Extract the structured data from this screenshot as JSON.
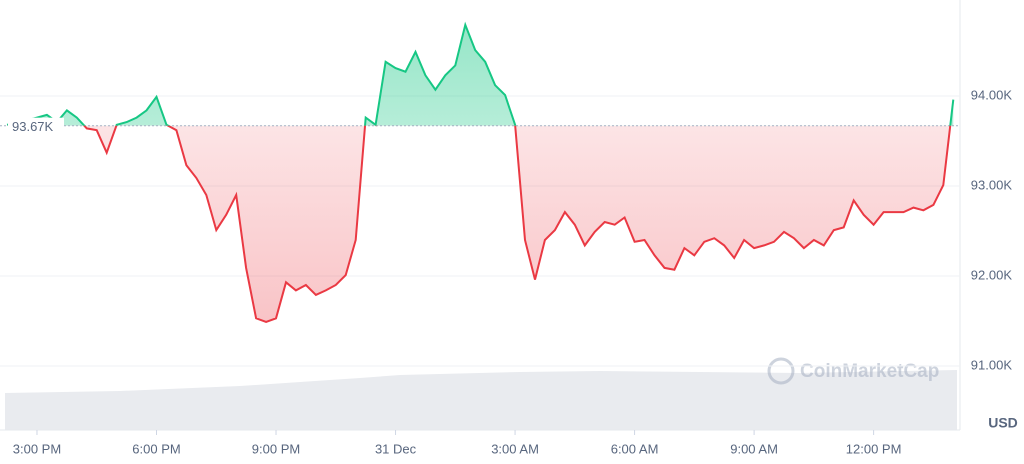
{
  "chart_data": {
    "type": "baseline-line",
    "categories": [
      null,
      null,
      null,
      "3:00 PM",
      null,
      null,
      null,
      null,
      null,
      null,
      null,
      null,
      null,
      null,
      null,
      "6:00 PM",
      null,
      null,
      null,
      null,
      null,
      null,
      null,
      null,
      null,
      null,
      null,
      "9:00 PM",
      null,
      null,
      null,
      null,
      null,
      null,
      null,
      null,
      null,
      null,
      null,
      "31 Dec",
      null,
      null,
      null,
      null,
      null,
      null,
      null,
      null,
      null,
      null,
      null,
      "3:00 AM",
      null,
      null,
      null,
      null,
      null,
      null,
      null,
      null,
      null,
      null,
      null,
      "6:00 AM",
      null,
      null,
      null,
      null,
      null,
      null,
      null,
      null,
      null,
      null,
      null,
      "9:00 AM",
      null,
      null,
      null,
      null,
      null,
      null,
      null,
      null,
      null,
      null,
      null,
      "12:00 PM",
      null,
      null,
      null,
      null,
      null,
      null,
      null,
      null
    ],
    "values": [
      93680,
      93710,
      93730,
      93760,
      93790,
      93710,
      93840,
      93760,
      93640,
      93620,
      93370,
      93680,
      93710,
      93760,
      93840,
      93990,
      93680,
      93620,
      93230,
      93090,
      92900,
      92510,
      92680,
      92900,
      92090,
      91530,
      91490,
      91530,
      91930,
      91840,
      91900,
      91790,
      91840,
      91900,
      92010,
      92400,
      93760,
      93680,
      94380,
      94310,
      94270,
      94490,
      94230,
      94070,
      94230,
      94340,
      94790,
      94510,
      94380,
      94120,
      94010,
      93680,
      92400,
      91960,
      92400,
      92510,
      92710,
      92570,
      92340,
      92490,
      92600,
      92570,
      92650,
      92380,
      92400,
      92230,
      92090,
      92070,
      92310,
      92230,
      92380,
      92420,
      92340,
      92200,
      92400,
      92310,
      92340,
      92380,
      92490,
      92420,
      92310,
      92400,
      92340,
      92510,
      92540,
      92840,
      92680,
      92570,
      92710,
      92710,
      92710,
      92760,
      92730,
      92790,
      93010,
      93960
    ],
    "baseline": {
      "value": 93670,
      "label": "93.67K"
    },
    "color_up": "#16c784",
    "color_down": "#ea3943",
    "ylim": [
      90289,
      95011
    ],
    "yticks": [
      {
        "value": 91000,
        "label": "91.00K"
      },
      {
        "value": 92000,
        "label": "92.00K"
      },
      {
        "value": 93000,
        "label": "93.00K"
      },
      {
        "value": 94000,
        "label": "94.00K"
      }
    ],
    "y_unit": "USD",
    "watermark": "CoinMarketCap",
    "grid": true
  }
}
